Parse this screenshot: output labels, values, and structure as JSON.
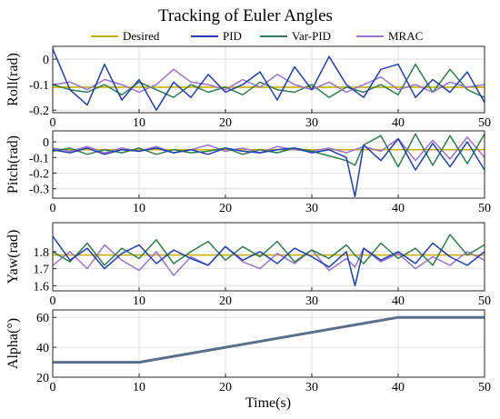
{
  "figure": {
    "title": "Tracking of Euler Angles",
    "legend_placement": "top-center, horizontal",
    "legend": [
      {
        "name": "Desired",
        "color": "#c9b000"
      },
      {
        "name": "PID",
        "color": "#1f3fb5"
      },
      {
        "name": "Var-PID",
        "color": "#2e7d4f"
      },
      {
        "name": "MRAC",
        "color": "#9b72cf"
      }
    ]
  },
  "chart_data": [
    {
      "type": "line",
      "id": "roll",
      "ylabel": "Roll(rad)",
      "xlim": [
        0,
        50
      ],
      "ylim": [
        -0.21,
        0.05
      ],
      "xticks": [
        0,
        10,
        20,
        30,
        40,
        50
      ],
      "xtick_labels": [
        "0",
        "10",
        "20",
        "30",
        "40",
        "50"
      ],
      "yticks": [
        0,
        -0.1,
        -0.2
      ],
      "ytick_labels": [
        "0",
        "-0.1",
        "-0.2"
      ],
      "grid": true,
      "x": [
        0,
        2,
        4,
        6,
        8,
        10,
        12,
        14,
        16,
        18,
        20,
        22,
        24,
        26,
        28,
        30,
        32,
        34,
        36,
        38,
        40,
        42,
        44,
        46,
        48,
        50
      ],
      "series": [
        {
          "name": "Desired",
          "values": [
            -0.11,
            -0.11,
            -0.11,
            -0.11,
            -0.11,
            -0.11,
            -0.11,
            -0.11,
            -0.11,
            -0.11,
            -0.11,
            -0.11,
            -0.11,
            -0.11,
            -0.11,
            -0.11,
            -0.11,
            -0.11,
            -0.11,
            -0.11,
            -0.11,
            -0.11,
            -0.11,
            -0.11,
            -0.11,
            -0.11
          ]
        },
        {
          "name": "Var-PID",
          "values": [
            -0.1,
            -0.12,
            -0.13,
            -0.1,
            -0.14,
            -0.09,
            -0.12,
            -0.15,
            -0.1,
            -0.13,
            -0.11,
            -0.14,
            -0.09,
            -0.12,
            -0.13,
            -0.1,
            -0.15,
            -0.11,
            -0.13,
            -0.1,
            -0.14,
            -0.02,
            -0.13,
            -0.04,
            -0.12,
            -0.15
          ]
        },
        {
          "name": "MRAC",
          "values": [
            -0.1,
            -0.09,
            -0.12,
            -0.08,
            -0.1,
            -0.13,
            -0.1,
            -0.04,
            -0.09,
            -0.1,
            -0.12,
            -0.08,
            -0.11,
            -0.06,
            -0.1,
            -0.12,
            -0.09,
            -0.13,
            -0.1,
            -0.07,
            -0.12,
            -0.1,
            -0.13,
            -0.09,
            -0.11,
            -0.1
          ]
        },
        {
          "name": "PID",
          "values": [
            0.04,
            -0.12,
            -0.18,
            -0.02,
            -0.16,
            -0.08,
            -0.2,
            -0.09,
            -0.15,
            -0.06,
            -0.13,
            -0.1,
            -0.05,
            -0.16,
            -0.03,
            -0.12,
            0.01,
            -0.1,
            -0.15,
            -0.04,
            -0.02,
            -0.15,
            -0.08,
            -0.13,
            -0.05,
            -0.17
          ]
        }
      ]
    },
    {
      "type": "line",
      "id": "pitch",
      "ylabel": "Pitch(rad)",
      "xlim": [
        0,
        50
      ],
      "ylim": [
        -0.36,
        0.07
      ],
      "xticks": [
        0,
        10,
        20,
        30,
        40,
        50
      ],
      "xtick_labels": [
        "0",
        "10",
        "20",
        "30",
        "40",
        "50"
      ],
      "yticks": [
        0,
        -0.1,
        -0.2,
        -0.3
      ],
      "ytick_labels": [
        "0",
        "-0.1",
        "-0.2",
        "-0.3"
      ],
      "grid": true,
      "x": [
        0,
        2,
        4,
        6,
        8,
        10,
        12,
        14,
        16,
        18,
        20,
        22,
        24,
        26,
        28,
        30,
        32,
        34,
        35,
        36,
        38,
        40,
        42,
        44,
        46,
        48,
        50
      ],
      "series": [
        {
          "name": "Desired",
          "values": [
            -0.05,
            -0.05,
            -0.05,
            -0.05,
            -0.05,
            -0.05,
            -0.05,
            -0.05,
            -0.05,
            -0.05,
            -0.05,
            -0.05,
            -0.05,
            -0.05,
            -0.05,
            -0.05,
            -0.05,
            -0.05,
            -0.05,
            -0.05,
            -0.05,
            -0.05,
            -0.05,
            -0.05,
            -0.05,
            -0.05,
            -0.05
          ]
        },
        {
          "name": "MRAC",
          "values": [
            -0.04,
            -0.06,
            -0.03,
            -0.07,
            -0.04,
            -0.06,
            -0.03,
            -0.07,
            -0.05,
            -0.02,
            -0.06,
            -0.04,
            -0.07,
            -0.03,
            -0.05,
            -0.06,
            -0.04,
            -0.07,
            -0.05,
            -0.03,
            -0.06,
            0.02,
            -0.12,
            0.01,
            -0.11,
            0.03,
            -0.1
          ]
        },
        {
          "name": "Var-PID",
          "values": [
            -0.06,
            -0.04,
            -0.08,
            -0.05,
            -0.07,
            -0.04,
            -0.08,
            -0.05,
            -0.07,
            -0.06,
            -0.04,
            -0.08,
            -0.05,
            -0.07,
            -0.04,
            -0.06,
            -0.09,
            -0.12,
            -0.15,
            -0.02,
            0.04,
            -0.16,
            0.05,
            -0.15,
            0.04,
            -0.14,
            0.05
          ]
        },
        {
          "name": "PID",
          "values": [
            -0.05,
            -0.07,
            -0.04,
            -0.08,
            -0.05,
            -0.06,
            -0.04,
            -0.07,
            -0.05,
            -0.08,
            -0.04,
            -0.06,
            -0.07,
            -0.05,
            -0.04,
            -0.07,
            -0.05,
            -0.1,
            -0.35,
            -0.02,
            -0.12,
            0.02,
            -0.18,
            -0.01,
            -0.16,
            0.0,
            -0.18
          ]
        }
      ]
    },
    {
      "type": "line",
      "id": "yaw",
      "ylabel": "Yaw(rad)",
      "xlim": [
        0,
        50
      ],
      "ylim": [
        1.57,
        1.97
      ],
      "xticks": [
        0,
        10,
        20,
        30,
        40,
        50
      ],
      "xtick_labels": [
        "0",
        "10",
        "20",
        "30",
        "40",
        "50"
      ],
      "yticks": [
        1.6,
        1.7,
        1.8
      ],
      "ytick_labels": [
        "1.6",
        "1.7",
        "1.8"
      ],
      "grid": true,
      "x": [
        0,
        2,
        4,
        6,
        8,
        10,
        12,
        14,
        16,
        18,
        20,
        22,
        24,
        26,
        28,
        30,
        32,
        34,
        35,
        36,
        38,
        40,
        42,
        44,
        46,
        48,
        50
      ],
      "series": [
        {
          "name": "Desired",
          "values": [
            1.78,
            1.78,
            1.78,
            1.78,
            1.78,
            1.78,
            1.78,
            1.78,
            1.78,
            1.78,
            1.78,
            1.78,
            1.78,
            1.78,
            1.78,
            1.78,
            1.78,
            1.78,
            1.78,
            1.78,
            1.78,
            1.78,
            1.78,
            1.78,
            1.78,
            1.78,
            1.78
          ]
        },
        {
          "name": "MRAC",
          "values": [
            1.72,
            1.8,
            1.7,
            1.84,
            1.75,
            1.69,
            1.8,
            1.66,
            1.77,
            1.72,
            1.83,
            1.74,
            1.7,
            1.79,
            1.73,
            1.81,
            1.69,
            1.76,
            1.71,
            1.82,
            1.74,
            1.79,
            1.7,
            1.77,
            1.72,
            1.8,
            1.75
          ]
        },
        {
          "name": "Var-PID",
          "values": [
            1.8,
            1.74,
            1.85,
            1.72,
            1.82,
            1.76,
            1.87,
            1.73,
            1.8,
            1.86,
            1.75,
            1.83,
            1.77,
            1.86,
            1.74,
            1.81,
            1.76,
            1.84,
            1.78,
            1.73,
            1.85,
            1.76,
            1.82,
            1.72,
            1.9,
            1.78,
            1.84
          ]
        },
        {
          "name": "PID",
          "values": [
            1.89,
            1.75,
            1.82,
            1.7,
            1.79,
            1.84,
            1.73,
            1.81,
            1.76,
            1.72,
            1.83,
            1.75,
            1.8,
            1.73,
            1.82,
            1.77,
            1.71,
            1.8,
            1.6,
            1.82,
            1.75,
            1.8,
            1.73,
            1.85,
            1.77,
            1.72,
            1.8
          ]
        }
      ]
    },
    {
      "type": "line",
      "id": "alpha",
      "ylabel": "Alpha(°)",
      "xlabel": "Time(s)",
      "xlim": [
        0,
        50
      ],
      "ylim": [
        20,
        65
      ],
      "xticks": [
        0,
        10,
        20,
        30,
        40,
        50
      ],
      "xtick_labels": [
        "0",
        "10",
        "20",
        "30",
        "40",
        "50"
      ],
      "yticks": [
        20,
        40,
        60
      ],
      "ytick_labels": [
        "20",
        "40",
        "60"
      ],
      "grid": true,
      "x": [
        0,
        10,
        40,
        50
      ],
      "series": [
        {
          "name": "Var-PID",
          "values": [
            30,
            30,
            60,
            60
          ],
          "overlay_color": "#5a6f8c"
        }
      ]
    }
  ]
}
